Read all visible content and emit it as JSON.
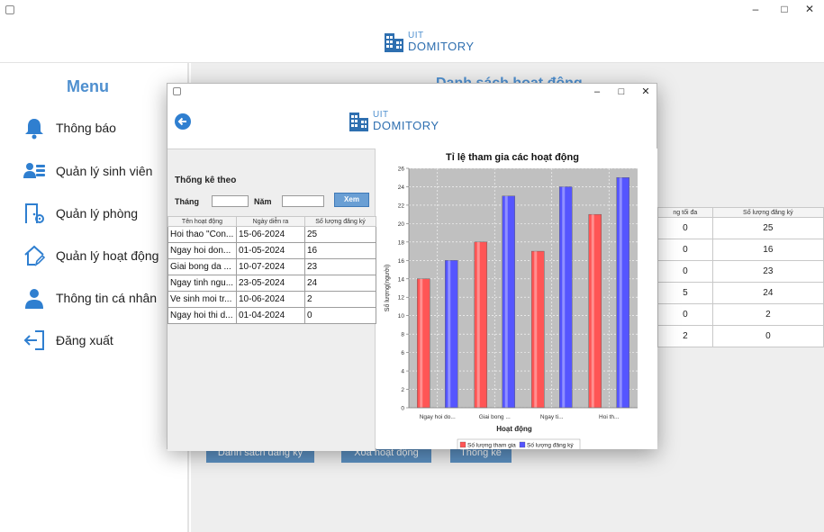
{
  "main_window": {
    "logo_line1": "UIT",
    "logo_line2": "DOMITORY",
    "menu_title": "Menu",
    "menu_items": [
      {
        "label": "Thông báo",
        "icon": "bell-icon"
      },
      {
        "label": "Quản lý sinh viên",
        "icon": "users-icon"
      },
      {
        "label": "Quản lý phòng",
        "icon": "room-settings-icon"
      },
      {
        "label": "Quản lý hoạt động",
        "icon": "home-edit-icon"
      },
      {
        "label": "Thông tin cá nhân",
        "icon": "user-icon"
      },
      {
        "label": "Đăng xuất",
        "icon": "logout-icon"
      }
    ],
    "content_title": "Danh sách hoạt động",
    "bg_table": {
      "headers": [
        "ng tối đa",
        "Số lượng đăng ký"
      ],
      "rows": [
        [
          "0",
          "25"
        ],
        [
          "0",
          "16"
        ],
        [
          "0",
          "23"
        ],
        [
          "5",
          "24"
        ],
        [
          "0",
          "2"
        ],
        [
          "2",
          "0"
        ]
      ]
    },
    "buttons": [
      "Danh sách đăng ký",
      "Xóa hoạt động",
      "Thống kê"
    ]
  },
  "dialog": {
    "logo_line1": "UIT",
    "logo_line2": "DOMITORY",
    "filter": {
      "title": "Thống kê theo",
      "month_label": "Tháng",
      "month_value": "",
      "year_label": "Năm",
      "year_value": "",
      "view_button": "Xem"
    },
    "table": {
      "headers": [
        "Tên hoạt động",
        "Ngày diễn ra",
        "Số lượng đăng ký"
      ],
      "rows": [
        [
          "Hoi thao \"Con...",
          "15-06-2024",
          "25"
        ],
        [
          "Ngay hoi don...",
          "01-05-2024",
          "16"
        ],
        [
          "Giai bong da ...",
          "10-07-2024",
          "23"
        ],
        [
          "Ngay tinh ngu...",
          "23-05-2024",
          "24"
        ],
        [
          "Ve sinh moi tr...",
          "10-06-2024",
          "2"
        ],
        [
          "Ngay hoi thi d...",
          "01-04-2024",
          "0"
        ]
      ]
    }
  },
  "chart_data": {
    "type": "bar",
    "title": "Tỉ lệ tham gia các hoạt động",
    "xlabel": "Hoạt động",
    "ylabel": "Số lượng(người)",
    "categories": [
      "Ngay hoi do...",
      "Giai bong ...",
      "Ngay ti...",
      "Hoi th..."
    ],
    "series": [
      {
        "name": "Số lượng tham gia",
        "color": "#ff5555",
        "values": [
          14,
          18,
          17,
          21
        ]
      },
      {
        "name": "Số lượng đăng ký",
        "color": "#5555ff",
        "values": [
          16,
          23,
          24,
          25
        ]
      }
    ],
    "ylim": [
      0,
      26
    ],
    "yticks": [
      0,
      2,
      4,
      6,
      8,
      10,
      12,
      14,
      16,
      18,
      20,
      22,
      24,
      26
    ],
    "grid": true,
    "legend_position": "bottom"
  }
}
